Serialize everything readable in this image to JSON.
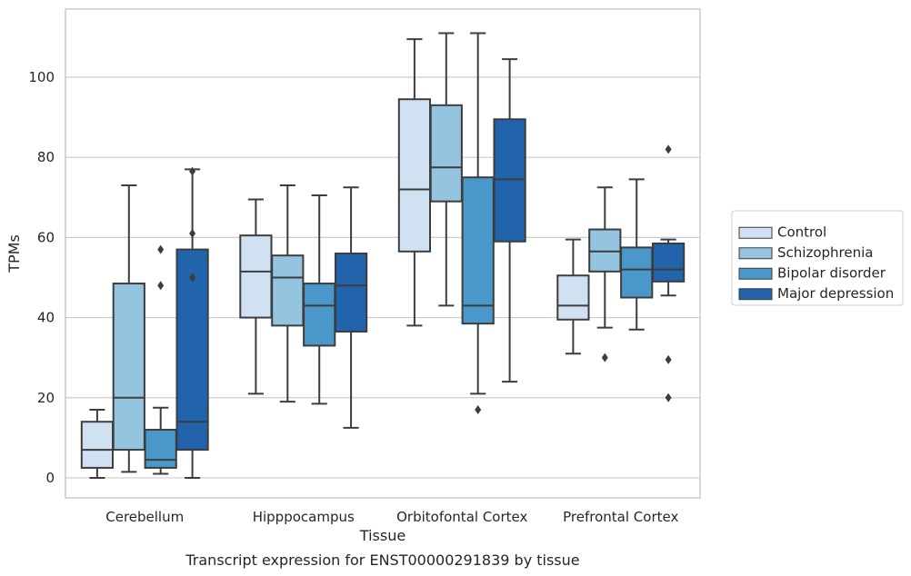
{
  "chart_data": {
    "type": "boxplot",
    "caption": "Transcript expression for ENST00000291839 by tissue",
    "xlabel": "Tissue",
    "ylabel": "TPMs",
    "ylim": [
      -5,
      117
    ],
    "yticks": [
      0,
      20,
      40,
      60,
      80,
      100
    ],
    "grid": "horizontal",
    "legend_position": "right",
    "categories": [
      "Cerebellum",
      "Hipppocampus",
      "Orbitofontal Cortex",
      "Prefrontal Cortex"
    ],
    "series": [
      {
        "name": "Control",
        "color": "#d0e1f2",
        "boxes": [
          {
            "whislo": 0,
            "q1": 2.5,
            "med": 7,
            "q3": 14,
            "whishi": 17,
            "fliers": []
          },
          {
            "whislo": 21,
            "q1": 40,
            "med": 51.5,
            "q3": 60.5,
            "whishi": 69.5,
            "fliers": []
          },
          {
            "whislo": 38,
            "q1": 56.5,
            "med": 72,
            "q3": 94.5,
            "whishi": 109.5,
            "fliers": []
          },
          {
            "whislo": 31,
            "q1": 39.5,
            "med": 43,
            "q3": 50.5,
            "whishi": 59.5,
            "fliers": []
          }
        ]
      },
      {
        "name": "Schizophrenia",
        "color": "#94c4df",
        "boxes": [
          {
            "whislo": 1.5,
            "q1": 7,
            "med": 20,
            "q3": 48.5,
            "whishi": 73,
            "fliers": []
          },
          {
            "whislo": 19,
            "q1": 38,
            "med": 50,
            "q3": 55.5,
            "whishi": 73,
            "fliers": []
          },
          {
            "whislo": 43,
            "q1": 69,
            "med": 77.5,
            "q3": 93,
            "whishi": 111,
            "fliers": []
          },
          {
            "whislo": 37.5,
            "q1": 51.5,
            "med": 56.5,
            "q3": 62,
            "whishi": 72.5,
            "fliers": [
              30
            ]
          }
        ]
      },
      {
        "name": "Bipolar disorder",
        "color": "#4a98c9",
        "boxes": [
          {
            "whislo": 1,
            "q1": 2.5,
            "med": 4.5,
            "q3": 12,
            "whishi": 17.5,
            "fliers": [
              48,
              57
            ]
          },
          {
            "whislo": 18.5,
            "q1": 33,
            "med": 43,
            "q3": 48.5,
            "whishi": 70.5,
            "fliers": []
          },
          {
            "whislo": 21,
            "q1": 38.5,
            "med": 43,
            "q3": 75,
            "whishi": 111,
            "fliers": [
              17
            ]
          },
          {
            "whislo": 37,
            "q1": 45,
            "med": 52,
            "q3": 57.5,
            "whishi": 74.5,
            "fliers": []
          }
        ]
      },
      {
        "name": "Major depression",
        "color": "#2164ab",
        "boxes": [
          {
            "whislo": 0,
            "q1": 7,
            "med": 14,
            "q3": 57,
            "whishi": 77,
            "fliers": [
              50,
              61,
              76.5
            ]
          },
          {
            "whislo": 12.5,
            "q1": 36.5,
            "med": 48,
            "q3": 56,
            "whishi": 72.5,
            "fliers": []
          },
          {
            "whislo": 24,
            "q1": 59,
            "med": 74.5,
            "q3": 89.5,
            "whishi": 104.5,
            "fliers": []
          },
          {
            "whislo": 45.5,
            "q1": 49,
            "med": 52,
            "q3": 58.5,
            "whishi": 59.5,
            "fliers": [
              20,
              29.5,
              82
            ]
          }
        ]
      }
    ]
  }
}
